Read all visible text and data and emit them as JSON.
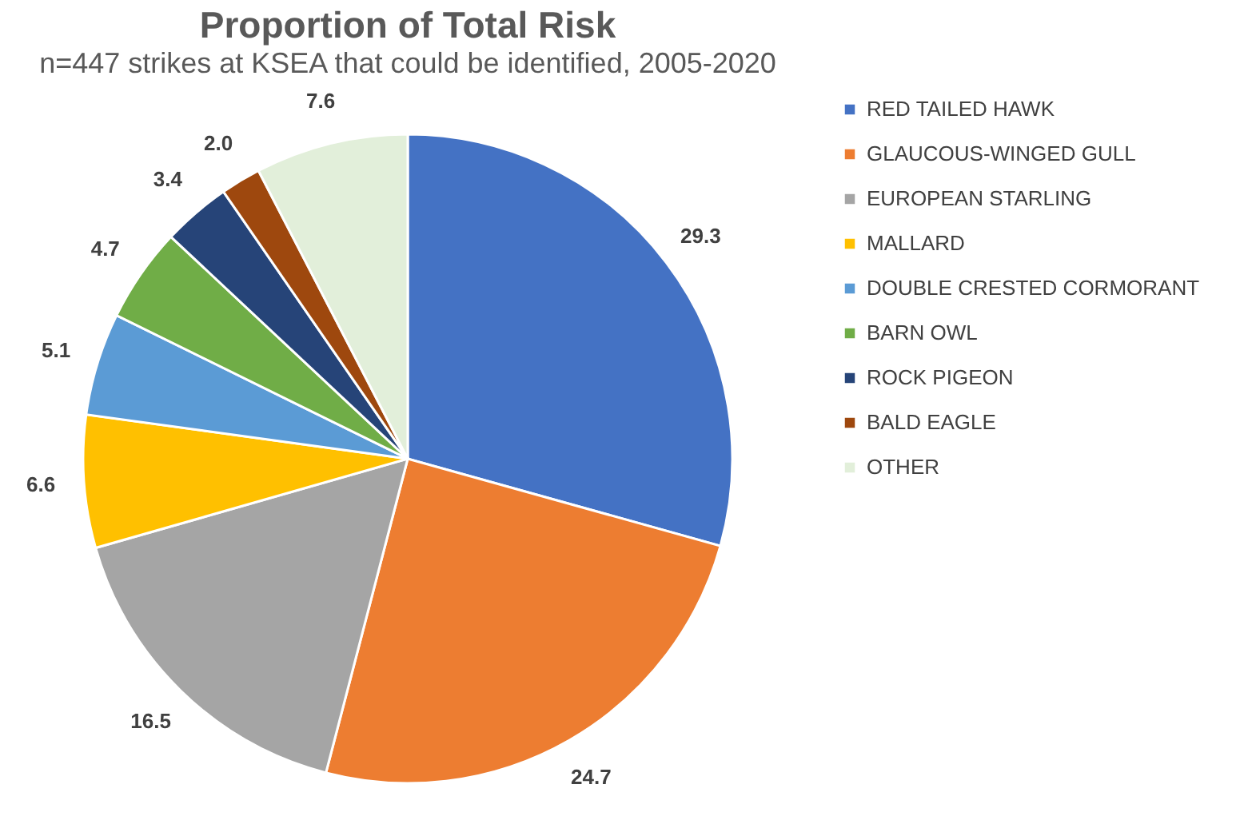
{
  "chart_data": {
    "type": "pie",
    "title": "Proportion of Total Risk",
    "subtitle": "n=447 strikes at KSEA that could be identified, 2005-2020",
    "categories": [
      "RED TAILED HAWK",
      "GLAUCOUS-WINGED GULL",
      "EUROPEAN STARLING",
      "MALLARD",
      "DOUBLE CRESTED CORMORANT",
      "BARN OWL",
      "ROCK PIGEON",
      "BALD EAGLE",
      "OTHER"
    ],
    "values": [
      29.3,
      24.7,
      16.5,
      6.6,
      5.1,
      4.7,
      3.4,
      2.0,
      7.6
    ],
    "colors": [
      "#4472c4",
      "#ed7d31",
      "#a5a5a5",
      "#ffc000",
      "#5b9bd5",
      "#70ad47",
      "#264478",
      "#9e480e",
      "#e2efda"
    ],
    "value_labels": [
      "29.3",
      "24.7",
      "16.5",
      "6.6",
      "5.1",
      "4.7",
      "3.4",
      "2.0",
      "7.6"
    ],
    "legend": "right"
  }
}
